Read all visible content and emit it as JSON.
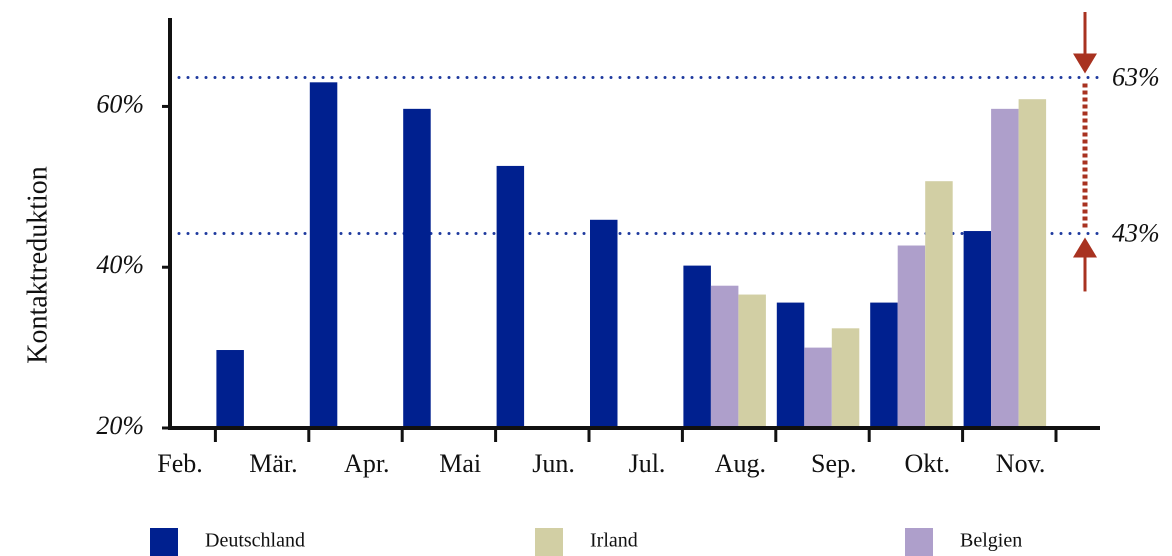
{
  "chart_data": {
    "type": "bar",
    "y_label": "Kontaktreduktion",
    "categories": [
      "Feb.",
      "Mär.",
      "Apr.",
      "Mai",
      "Jun.",
      "Jul.",
      "Aug.",
      "Sep.",
      "Okt.",
      "Nov."
    ],
    "series": [
      {
        "name": "Deutschland",
        "color": "#00208f",
        "values": [
          null,
          29.7,
          63,
          59.7,
          52.6,
          45.9,
          40.2,
          35.6,
          35.6,
          44.5
        ]
      },
      {
        "name": "Belgien",
        "color": "#ae9fcb",
        "values": [
          null,
          null,
          null,
          null,
          null,
          null,
          37.7,
          30,
          42.7,
          59.7
        ]
      },
      {
        "name": "Irland",
        "color": "#d2cfa4",
        "values": [
          null,
          null,
          null,
          null,
          null,
          null,
          36.6,
          32.4,
          50.7,
          60.9
        ]
      }
    ],
    "ylim": [
      20,
      71
    ],
    "yticks": [
      {
        "value": 20,
        "label": "20%"
      },
      {
        "value": 40,
        "label": "40%"
      },
      {
        "value": 60,
        "label": "60%"
      }
    ],
    "annotations": [
      {
        "value": 63.6,
        "label": "63%"
      },
      {
        "value": 44.2,
        "label": "43%"
      }
    ],
    "annotation_color": "#1f3a9e",
    "arrow_color": "#a83220"
  }
}
